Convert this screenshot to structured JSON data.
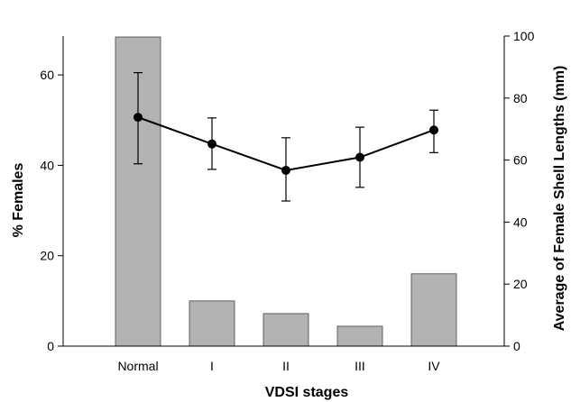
{
  "chart_data": {
    "type": "bar",
    "xlabel": "VDSI stages",
    "ylabel": "% Females",
    "y2label": "Average of Female Shell Lengths (mm)",
    "categories": [
      "Normal",
      "I",
      "II",
      "III",
      "IV"
    ],
    "ylim": [
      0,
      68.6
    ],
    "y2lim": [
      0,
      100
    ],
    "yticks": [
      "0",
      "20",
      "40",
      "60"
    ],
    "y2ticks": [
      "0",
      "20",
      "40",
      "60",
      "80",
      "100"
    ],
    "series": [
      {
        "type": "bar",
        "axis": "left",
        "color": "#b3b3b3",
        "values": [
          68.4,
          10.0,
          7.2,
          4.4,
          16.0
        ]
      },
      {
        "type": "line",
        "axis": "right",
        "color": "#000000",
        "values": [
          73.8,
          65.2,
          56.7,
          60.9,
          69.7
        ],
        "error_low": [
          58.8,
          57.0,
          46.8,
          51.2,
          62.4
        ],
        "error_high": [
          88.2,
          73.6,
          67.2,
          70.6,
          76.1
        ]
      }
    ]
  }
}
